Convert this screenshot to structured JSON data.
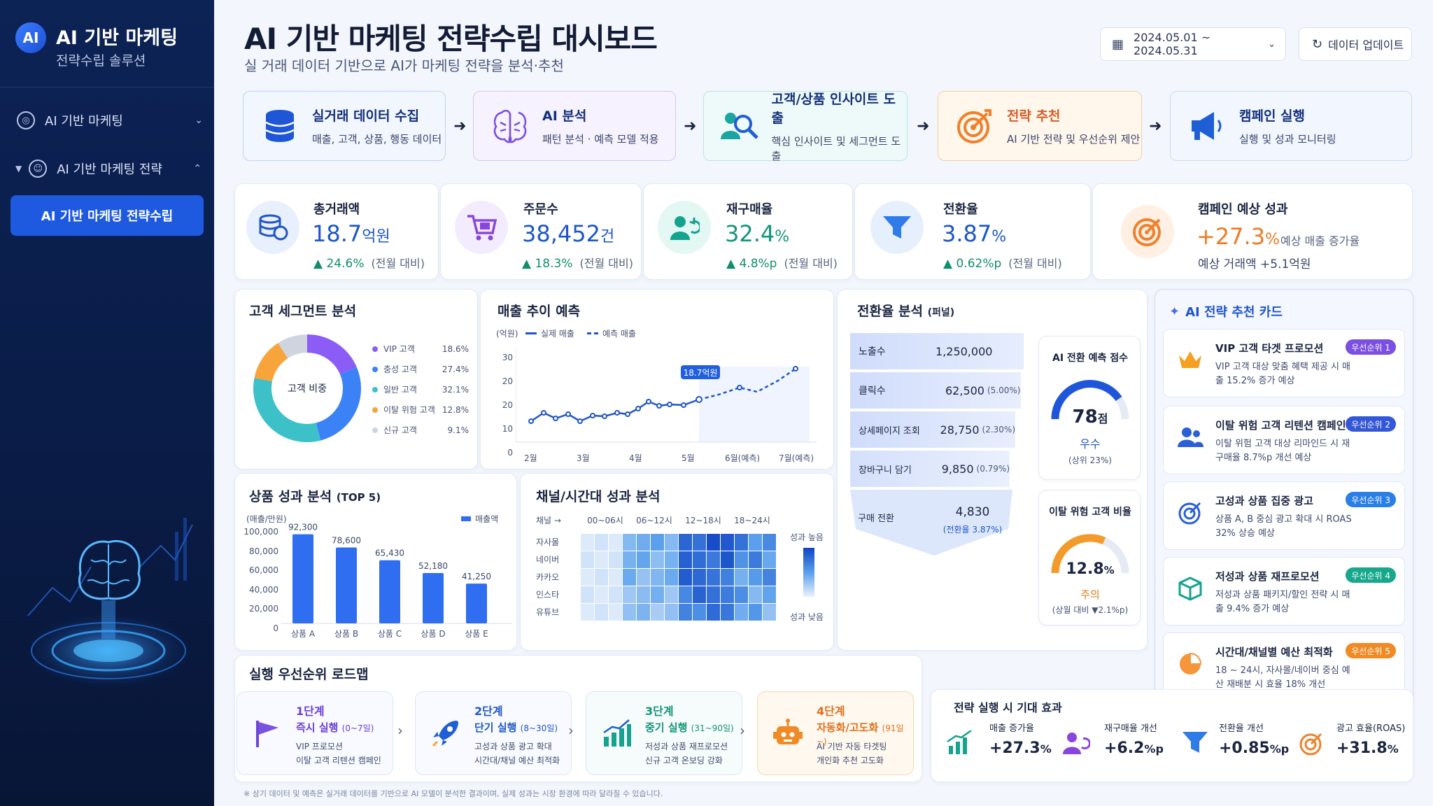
{
  "sidebar": {
    "logo_badge": "AI",
    "title": "AI 기반 마케팅",
    "subtitle": "전략수립 솔루션",
    "items": [
      {
        "label": "AI 기반 마케팅"
      },
      {
        "label": "AI 기반 마케팅 전략"
      }
    ],
    "active_item": "AI 기반 마케팅 전략수립"
  },
  "header": {
    "title": "AI 기반 마케팅 전략수립 대시보드",
    "subtitle": "실 거래 데이터 기반으로 AI가 마케팅 전략을 분석·추천",
    "date_range": "2024.05.01 ~ 2024.05.31",
    "update_button": "데이터 업데이트"
  },
  "process": [
    {
      "title": "실거래 데이터 수집",
      "desc": "매출, 고객, 상품, 행동 데이터"
    },
    {
      "title": "AI 분석",
      "desc": "패턴 분석 · 예측 모델 적용"
    },
    {
      "title": "고객/상품 인사이트 도출",
      "desc": "핵심 인사이트 및 세그먼트 도출"
    },
    {
      "title": "전략 추천",
      "desc": "AI 기반 전략 및 우선순위 제안"
    },
    {
      "title": "캠페인 실행",
      "desc": "실행 및 성과 모니터링"
    }
  ],
  "kpis": [
    {
      "label": "총거래액",
      "value": "18.7",
      "unit": "억원",
      "delta": "▲ 24.6%",
      "note": "(전월 대비)"
    },
    {
      "label": "주문수",
      "value": "38,452",
      "unit": "건",
      "delta": "▲ 18.3%",
      "note": "(전월 대비)"
    },
    {
      "label": "재구매율",
      "value": "32.4",
      "unit": "%",
      "delta": "▲ 4.8%p",
      "note": "(전월 대비)"
    },
    {
      "label": "전환율",
      "value": "3.87",
      "unit": "%",
      "delta": "▲ 0.62%p",
      "note": "(전월 대비)"
    }
  ],
  "campaign": {
    "label": "캠페인 예상 성과",
    "value": "+27.3",
    "unit": "%",
    "note": "예상 매출 증가율",
    "sub": "예상 거래액 +5.1억원"
  },
  "segment": {
    "title": "고객 세그먼트 분석",
    "center": "고객 비중",
    "items": [
      {
        "name": "VIP 고객",
        "pct": "18.6%",
        "value": 18.6,
        "color": "#8b5cf6"
      },
      {
        "name": "충성 고객",
        "pct": "27.4%",
        "value": 27.4,
        "color": "#3b82f6"
      },
      {
        "name": "일반 고객",
        "pct": "32.1%",
        "value": 32.1,
        "color": "#3dc1c9"
      },
      {
        "name": "이탈 위험 고객",
        "pct": "12.8%",
        "value": 12.8,
        "color": "#f7a43b"
      },
      {
        "name": "신규 고객",
        "pct": "9.1%",
        "value": 9.1,
        "color": "#cfd5df"
      }
    ]
  },
  "trend": {
    "title": "매출 추이 예측",
    "unit": "(억원)",
    "legend_actual": "실제 매출",
    "legend_forecast": "예측 매출",
    "callout": "18.7억원",
    "yticks": [
      "30",
      "20",
      "20",
      "10",
      "0"
    ],
    "xticks": [
      "2월",
      "3월",
      "4월",
      "5월",
      "6월(예측)",
      "7월(예측)"
    ]
  },
  "chart_data": {
    "type": "bar",
    "title": "상품 성과 분석",
    "title_suffix": "(TOP 5)",
    "ylabel": "(매출/만원)",
    "legend": "매출액",
    "categories": [
      "상품 A",
      "상품 B",
      "상품 C",
      "상품 D",
      "상품 E"
    ],
    "values": [
      92300,
      78600,
      65430,
      52180,
      41250
    ],
    "value_labels": [
      "92,300",
      "78,600",
      "65,430",
      "52,180",
      "41,250"
    ],
    "yticks": [
      "100,000",
      "80,000",
      "60,000",
      "40,000",
      "20,000",
      "0"
    ],
    "ylim": [
      0,
      100000
    ]
  },
  "heatmap": {
    "title": "채널/시간대 성과 분석",
    "corner": "채널 →",
    "columns": [
      "00~06시",
      "06~12시",
      "12~18시",
      "18~24시"
    ],
    "rows": [
      "자사몰",
      "네이버",
      "카카오",
      "인스타",
      "유튜브"
    ],
    "high": "성과 높음",
    "low": "성과 낮음",
    "colors": {
      "low": "#eaf2fb",
      "mid": "#5aa0ec",
      "high": "#1044c4"
    }
  },
  "funnel": {
    "title": "전환율 분석",
    "title_suffix": "(퍼널)",
    "stages": [
      {
        "name": "노출수",
        "value": "1,250,000",
        "rate": ""
      },
      {
        "name": "클릭수",
        "value": "62,500",
        "rate": "(5.00%)"
      },
      {
        "name": "상세페이지 조회",
        "value": "28,750",
        "rate": "(2.30%)"
      },
      {
        "name": "장바구니 담기",
        "value": "9,850",
        "rate": "(0.79%)"
      },
      {
        "name": "구매 전환",
        "value": "4,830",
        "rate": "(전환율 3.87%)"
      }
    ]
  },
  "score": {
    "title": "AI 전환 예측 점수",
    "value": "78",
    "unit": "점",
    "grade": "우수",
    "note": "(상위 23%)"
  },
  "churn": {
    "title": "이탈 위험 고객 비율",
    "value": "12.8",
    "unit": "%",
    "grade": "주의",
    "note": "(상월 대비 ▼2.1%p)"
  },
  "recommendations": {
    "title": "AI 전략 추천 카드",
    "cards": [
      {
        "title": "VIP 고객 타겟 프로모션",
        "desc": "VIP 고객 대상 맞춤 혜택 제공 시 매출 15.2% 증가 예상",
        "badge": "우선순위 1"
      },
      {
        "title": "이탈 위험 고객 리텐션 캠페인",
        "desc": "이탈 위험 고객 대상 리마인드 시 재구매율 8.7%p 개선 예상",
        "badge": "우선순위 2"
      },
      {
        "title": "고성과 상품 집중 광고",
        "desc": "상품 A, B 중심 광고 확대 시 ROAS 32% 상승 예상",
        "badge": "우선순위 3"
      },
      {
        "title": "저성과 상품 재프로모션",
        "desc": "저성과 상품 패키지/할인 전략 시 매출 9.4% 증가 예상",
        "badge": "우선순위 4"
      },
      {
        "title": "시간대/채널별 예산 최적화",
        "desc": "18 ~ 24시, 자사몰/네이버 중심 예산 재배분 시 효율 18% 개선",
        "badge": "우선순위 5"
      }
    ]
  },
  "roadmap": {
    "title": "실행 우선순위 로드맵",
    "steps": [
      {
        "stage": "1단계",
        "name": "즉시 실행",
        "period": "(0~7일)",
        "desc1": "VIP 프로모션",
        "desc2": "이탈 고객 리텐션 캠페인"
      },
      {
        "stage": "2단계",
        "name": "단기 실행",
        "period": "(8~30일)",
        "desc1": "고성과 상품 광고 확대",
        "desc2": "시간대/채널 예산 최적화"
      },
      {
        "stage": "3단계",
        "name": "중기 실행",
        "period": "(31~90일)",
        "desc1": "저성과 상품 재프로모션",
        "desc2": "신규 고객 온보딩 강화"
      },
      {
        "stage": "4단계",
        "name": "자동화/고도화",
        "period": "(91일~)",
        "desc1": "AI 기반 자동 타겟팅",
        "desc2": "개인화 추천 고도화"
      }
    ]
  },
  "effects": {
    "title": "전략 실행 시 기대 효과",
    "items": [
      {
        "label": "매출 증가율",
        "value": "+27.3",
        "unit": "%"
      },
      {
        "label": "재구매율 개선",
        "value": "+6.2",
        "unit": "%p"
      },
      {
        "label": "전환율 개선",
        "value": "+0.85",
        "unit": "%p"
      },
      {
        "label": "광고 효율(ROAS)",
        "value": "+31.8",
        "unit": "%"
      }
    ]
  },
  "footnote": "※ 상기 데이터 및 예측은 실거래 데이터를 기반으로 AI 모델이 분석한 결과이며, 실제 성과는 시장 환경에 따라 달라질 수 있습니다."
}
